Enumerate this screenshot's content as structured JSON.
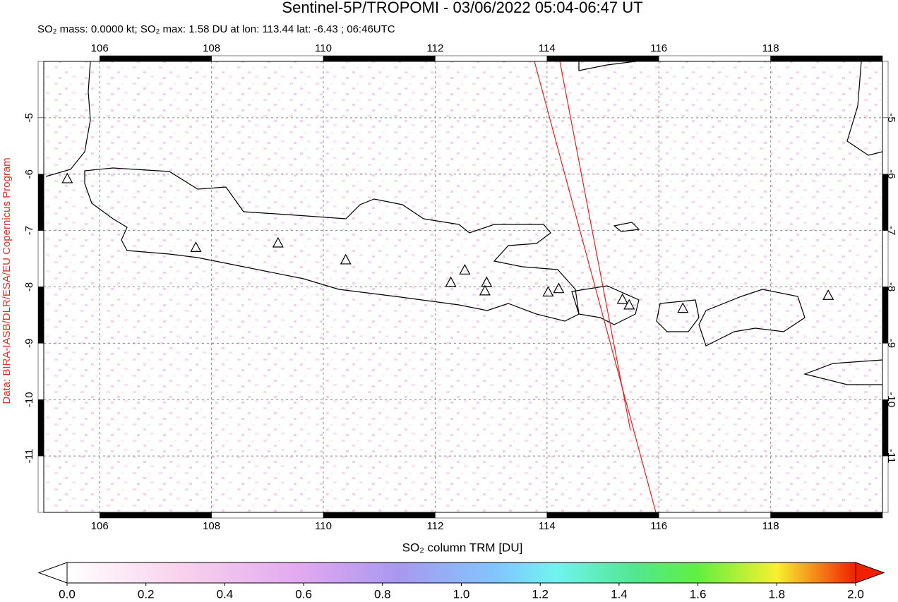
{
  "title": "Sentinel-5P/TROPOMI - 03/06/2022 05:04-06:47 UT",
  "subtitle": "SO₂ mass: 0.0000 kt; SO₂ max: 1.58 DU at lon: 113.44 lat: -6.43 ; 06:46UTC",
  "credit": "Data: BIRA-IASB/DLR/ESA/EU Copernicus Program",
  "map": {
    "lonlim": [
      105,
      120
    ],
    "latlim": [
      -12,
      -4
    ],
    "lonticks": [
      106,
      108,
      110,
      112,
      114,
      116,
      118
    ],
    "latticks": [
      -5,
      -6,
      -7,
      -8,
      -9,
      -10,
      -11
    ],
    "volcanoes": [
      {
        "lon": 105.42,
        "lat": -6.09
      },
      {
        "lon": 107.72,
        "lat": -7.31
      },
      {
        "lon": 109.19,
        "lat": -7.23
      },
      {
        "lon": 110.4,
        "lat": -7.53
      },
      {
        "lon": 112.28,
        "lat": -7.93
      },
      {
        "lon": 112.53,
        "lat": -7.71
      },
      {
        "lon": 112.92,
        "lat": -7.93
      },
      {
        "lon": 112.89,
        "lat": -8.08
      },
      {
        "lon": 114.02,
        "lat": -8.1
      },
      {
        "lon": 114.21,
        "lat": -8.04
      },
      {
        "lon": 115.35,
        "lat": -8.23
      },
      {
        "lon": 115.47,
        "lat": -8.33
      },
      {
        "lon": 116.43,
        "lat": -8.39
      },
      {
        "lon": 119.03,
        "lat": -8.16
      }
    ]
  },
  "colorbar": {
    "label": "SO₂ column TRM [DU]",
    "lim": [
      0,
      2
    ],
    "ticks": [
      {
        "value": 0,
        "label": "0.0"
      },
      {
        "value": 0.2,
        "label": "0.2"
      },
      {
        "value": 0.4,
        "label": "0.4"
      },
      {
        "value": 0.6,
        "label": "0.6"
      },
      {
        "value": 0.8,
        "label": "0.8"
      },
      {
        "value": 1,
        "label": "1.0"
      },
      {
        "value": 1.2,
        "label": "1.2"
      },
      {
        "value": 1.4,
        "label": "1.4"
      },
      {
        "value": 1.6,
        "label": "1.6"
      },
      {
        "value": 1.8,
        "label": "1.8"
      },
      {
        "value": 2,
        "label": "2.0"
      }
    ]
  }
}
